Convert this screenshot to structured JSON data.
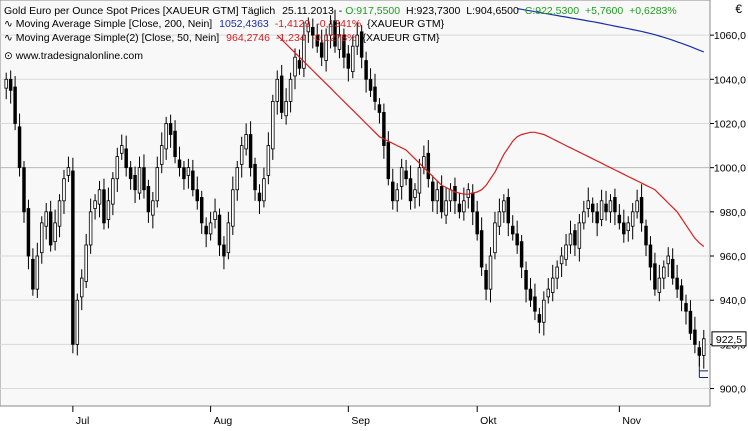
{
  "header": {
    "line1": {
      "title": "Gold Euro per Ounce Spot Prices [XAUEUR GTM]  Täglich",
      "date": "25.11.2013",
      "open": "O:917,5500",
      "high": "H:923,7300",
      "low": "L:904,6500",
      "close": "C:922,5300",
      "change": "+5,7600",
      "change_pct": "+0,6283%"
    },
    "line2": {
      "label": "Moving Average Simple [Close, 200, Nein]",
      "value": "1052,4363",
      "change": "-1,4129",
      "change_pct": "-0,1341%",
      "symbol": "{XAUEUR GTM}"
    },
    "line3": {
      "label": "Moving Average Simple(2) [Close, 50, Nein]",
      "value": "964,2746",
      "change": "-1,234",
      "change_pct": "-0,1278%",
      "symbol": "{XAUEUR GTM}"
    },
    "watermark": "www.tradesignalonline.com"
  },
  "colors": {
    "candle": "#000000",
    "ma200": "#1a2fa8",
    "ma50": "#d42020",
    "value_green": "#1e9e1e",
    "value_blue": "#1a2fa8",
    "value_red": "#d42020",
    "grid": "#d9d9d9",
    "background": "#f8f8f8",
    "support_line": "#1a1f6e"
  },
  "chart_data": {
    "type": "candlestick",
    "currency_label": "€",
    "y_axis_position": "right",
    "ylim": [
      893,
      1075
    ],
    "y_ticks": [
      900,
      920,
      940,
      960,
      980,
      1000,
      1020,
      1040,
      1060
    ],
    "y_tick_labels": [
      "900,0",
      "920,0",
      "940,0",
      "960,0",
      "980,0",
      "1000,0",
      "1020,0",
      "1040,0",
      "1060,0"
    ],
    "last_price_label": "922,5",
    "last_price": 922.5,
    "grid": true,
    "x_month_ticks": [
      {
        "label": "Jul",
        "index": 15
      },
      {
        "label": "Aug",
        "index": 46
      },
      {
        "label": "Sep",
        "index": 77
      },
      {
        "label": "Okt",
        "index": 106
      },
      {
        "label": "Nov",
        "index": 138
      }
    ],
    "n_bars": 158,
    "closes": [
      1040,
      1035,
      1020,
      1000,
      980,
      960,
      945,
      960,
      975,
      980,
      965,
      975,
      985,
      995,
      1000,
      920,
      940,
      950,
      965,
      980,
      985,
      990,
      975,
      985,
      995,
      1005,
      1010,
      1000,
      995,
      990,
      1000,
      990,
      980,
      985,
      1000,
      1010,
      1020,
      1015,
      1005,
      1000,
      995,
      1000,
      990,
      985,
      975,
      970,
      975,
      980,
      965,
      960,
      975,
      990,
      1000,
      1010,
      1015,
      1000,
      990,
      985,
      995,
      1010,
      1030,
      1040,
      1025,
      1030,
      1040,
      1050,
      1045,
      1060,
      1065,
      1060,
      1055,
      1050,
      1060,
      1065,
      1055,
      1060,
      1050,
      1045,
      1055,
      1060,
      1050,
      1040,
      1035,
      1030,
      1025,
      1010,
      995,
      985,
      990,
      1000,
      995,
      985,
      990,
      1000,
      1005,
      995,
      985,
      990,
      980,
      985,
      990,
      985,
      980,
      985,
      990,
      980,
      970,
      955,
      945,
      960,
      975,
      980,
      985,
      975,
      970,
      965,
      955,
      945,
      940,
      935,
      930,
      940,
      945,
      950,
      955,
      960,
      965,
      970,
      965,
      975,
      980,
      985,
      980,
      975,
      985,
      980,
      985,
      980,
      975,
      970,
      975,
      980,
      985,
      975,
      965,
      955,
      945,
      950,
      955,
      960,
      950,
      945,
      940,
      935,
      925,
      920,
      915,
      922.53
    ],
    "ma200": {
      "label": "Moving Average Simple [Close, 200, Nein]",
      "values": [
        1072.0,
        1071.7,
        1071.3,
        1071.0,
        1070.6,
        1070.3,
        1069.9,
        1069.6,
        1069.2,
        1068.9,
        1068.5,
        1068.2,
        1067.8,
        1067.5,
        1067.1,
        1066.8,
        1066.4,
        1066.1,
        1065.7,
        1065.3,
        1064.9,
        1064.5,
        1064.1,
        1063.7,
        1063.3,
        1062.9,
        1062.5,
        1062.1,
        1061.7,
        1061.2,
        1060.7,
        1060.2,
        1059.6,
        1059.0,
        1058.4,
        1057.7,
        1057.0,
        1056.3,
        1055.6,
        1054.8,
        1054.0,
        1053.2,
        1052.4
      ]
    },
    "ma50": {
      "label": "Moving Average Simple(2) [Close, 50, Nein]",
      "values": [
        1060.0,
        1058.0,
        1056.0,
        1054.0,
        1052.0,
        1050.0,
        1048.0,
        1046.0,
        1044.0,
        1042.0,
        1040.0,
        1038.0,
        1036.0,
        1034.0,
        1032.0,
        1030.0,
        1028.0,
        1026.0,
        1024.0,
        1022.0,
        1020.0,
        1018.0,
        1016.0,
        1014.0,
        1013.0,
        1012.0,
        1011.0,
        1010.0,
        1009.0,
        1008.0,
        1006.0,
        1004.0,
        1002.0,
        1000.0,
        998.0,
        996.0,
        994.0,
        992.0,
        991.0,
        990.0,
        989.0,
        988.5,
        988.0,
        988.0,
        988.5,
        989.0,
        990.0,
        992.0,
        995.0,
        998.0,
        1002.0,
        1006.0,
        1009.0,
        1012.0,
        1014.0,
        1015.0,
        1015.5,
        1016.0,
        1016.0,
        1015.5,
        1015.0,
        1014.0,
        1013.0,
        1012.0,
        1011.0,
        1010.0,
        1009.0,
        1008.0,
        1007.0,
        1006.0,
        1005.0,
        1004.0,
        1003.0,
        1002.0,
        1001.0,
        1000.0,
        999.0,
        998.0,
        997.0,
        996.0,
        995.0,
        994.0,
        993.0,
        992.0,
        991.0,
        990.0,
        988.0,
        986.0,
        984.0,
        982.0,
        980.0,
        977.0,
        974.0,
        971.0,
        968.0,
        966.0,
        964.3
      ]
    }
  }
}
